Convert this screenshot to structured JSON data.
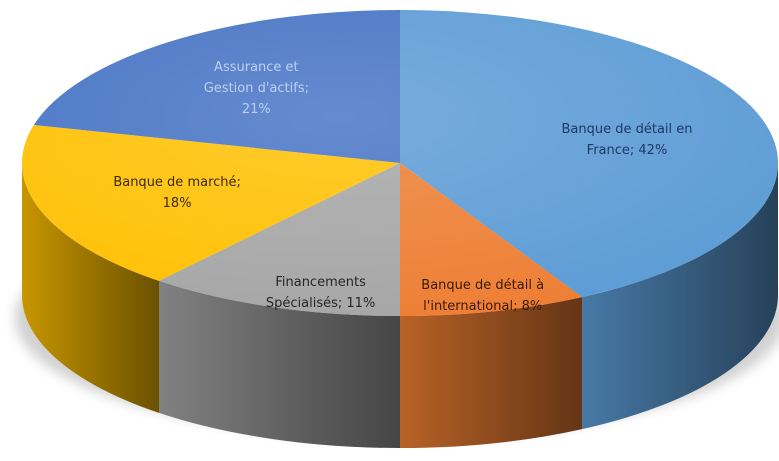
{
  "chart_data": {
    "type": "pie",
    "three_d": true,
    "title": "",
    "legend": "none",
    "slices": [
      {
        "label_lines": [
          "Banque de détail en",
          "France; 42%"
        ],
        "value": 42,
        "color": "#5b9bd5",
        "label_color": "#1f3864"
      },
      {
        "label_lines": [
          "Banque de détail à",
          "l'international; 8%"
        ],
        "value": 8,
        "color": "#ed7d31",
        "label_color": "#3a1a06"
      },
      {
        "label_lines": [
          "Financements",
          "Spécialisés; 11%"
        ],
        "value": 11,
        "color": "#a5a5a5",
        "label_color": "#262626"
      },
      {
        "label_lines": [
          "Banque de marché;",
          "18%"
        ],
        "value": 18,
        "color": "#ffc000",
        "label_color": "#3d2b00"
      },
      {
        "label_lines": [
          "Assurance et",
          "Gestion d'actifs;",
          "21%"
        ],
        "value": 21,
        "color": "#4472c4",
        "label_color": "#bcd0f0"
      }
    ]
  }
}
